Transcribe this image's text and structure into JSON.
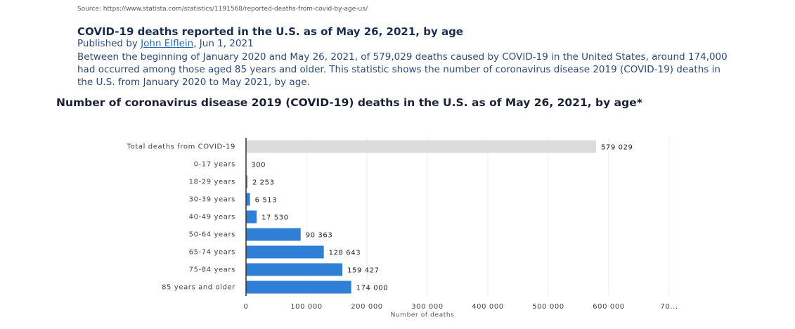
{
  "source": "Source: https://www.statista.com/statistics/1191568/reported-deaths-from-covid-by-age-us/",
  "article": {
    "title": "COVID-19 deaths reported in the U.S. as of May 26, 2021, by age",
    "published_prefix": "Published by",
    "author": "John Elflein",
    "published_date": ", Jun 1, 2021",
    "description": "Between the beginning of January 2020 and May 26, 2021, of 579,029 deaths caused by COVID-19 in the United States, around 174,000 had occurred among those aged 85 years and older. This statistic shows the number of coronavirus disease 2019 (COVID-19) deaths in the U.S. from January 2020 to May 2021, by age."
  },
  "chart_data": {
    "type": "hbar",
    "title": "Number of coronavirus disease 2019 (COVID-19) deaths in the U.S. as of May 26, 2021, by age*",
    "categories": [
      "Total deaths from COVID-19",
      "0-17 years",
      "18-29 years",
      "30-39 years",
      "40-49 years",
      "50-64 years",
      "65-74 years",
      "75-84 years",
      "85 years and older"
    ],
    "values": [
      579029,
      300,
      2253,
      6513,
      17530,
      90363,
      128643,
      159427,
      174000
    ],
    "value_labels": [
      "579 029",
      "300",
      "2 253",
      "6 513",
      "17 530",
      "90 363",
      "128 643",
      "159 427",
      "174 000"
    ],
    "colors": [
      "#dcdcdc",
      "#2f7fd6",
      "#2f7fd6",
      "#2f7fd6",
      "#2f7fd6",
      "#2f7fd6",
      "#2f7fd6",
      "#2f7fd6",
      "#2f7fd6"
    ],
    "xlabel": "Number of deaths",
    "xlim": [
      0,
      700000
    ],
    "xticks": [
      0,
      {
        "value": 100000,
        "label": "100 000"
      },
      {
        "value": 200000,
        "label": "200 000"
      },
      {
        "value": 300000,
        "label": "300 000"
      },
      {
        "value": 400000,
        "label": "400 000"
      },
      {
        "value": 500000,
        "label": "500 000"
      },
      {
        "value": 600000,
        "label": "600 000"
      },
      {
        "value": 700000,
        "label": "70..."
      }
    ],
    "grid": true
  }
}
